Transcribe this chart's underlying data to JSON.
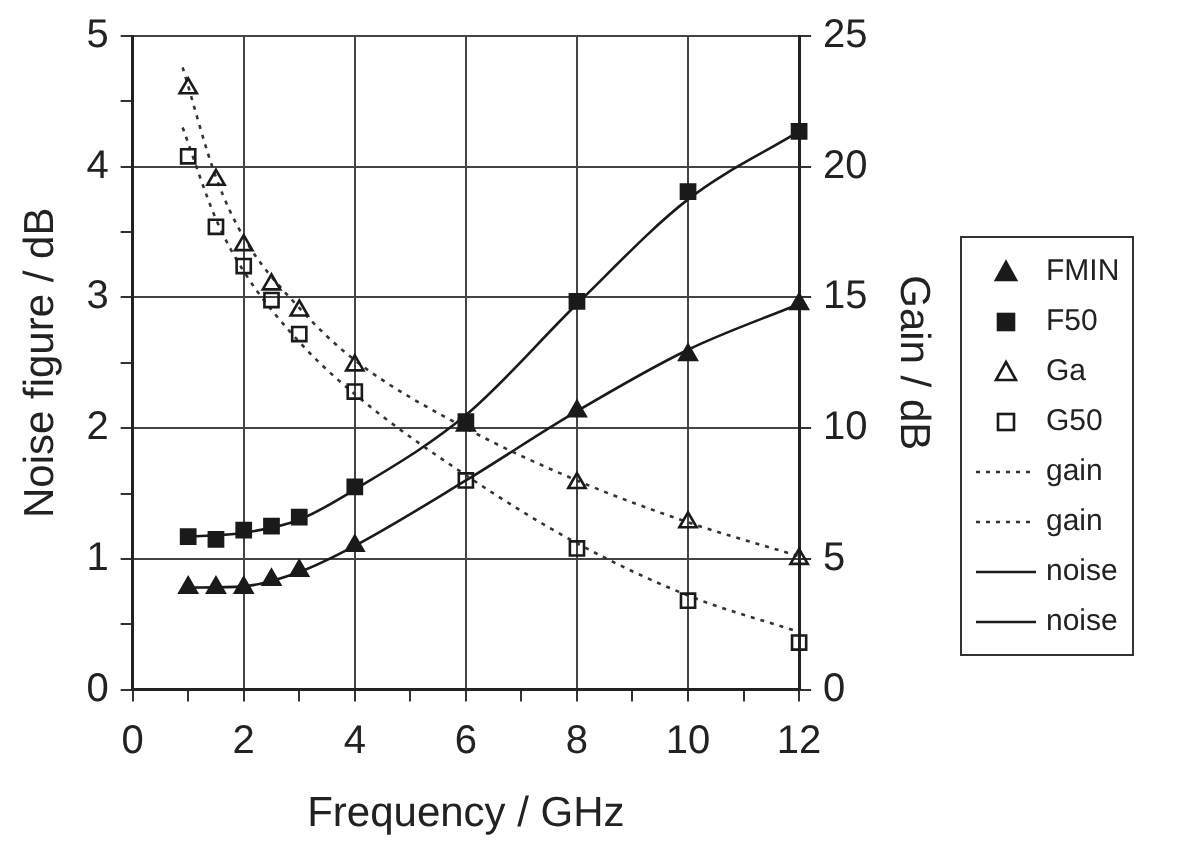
{
  "chart_data": {
    "type": "scatter",
    "xlabel": "Frequency / GHz",
    "ylabel": "Noise figure / dB",
    "y2label": "Gain / dB",
    "x": [
      1,
      1.5,
      2,
      2.5,
      3,
      4,
      6,
      8,
      10,
      12
    ],
    "xlim": [
      0,
      12
    ],
    "xticks": [
      0,
      {
        "value": 1,
        "label": null
      },
      2,
      {
        "value": 3,
        "label": null
      },
      4,
      {
        "value": 5,
        "label": null
      },
      6,
      {
        "value": 7,
        "label": null
      },
      8,
      {
        "value": 9,
        "label": null
      },
      10,
      {
        "value": 11,
        "label": null
      },
      12
    ],
    "ylim": [
      0,
      5
    ],
    "yticks": [
      0,
      {
        "value": 0.5,
        "label": null
      },
      1,
      {
        "value": 1.5,
        "label": null
      },
      2,
      {
        "value": 2.5,
        "label": null
      },
      3,
      {
        "value": 3.5,
        "label": null
      },
      4,
      {
        "value": 4.5,
        "label": null
      },
      5
    ],
    "y2lim": [
      0,
      25
    ],
    "y2ticks": [
      0,
      5,
      10,
      15,
      20,
      25
    ],
    "grid": true,
    "legend": "right",
    "series": [
      {
        "name": "FMIN",
        "color": "#1a1a1a",
        "marker": "triangle",
        "values": [
          0.78,
          0.78,
          0.78,
          0.84,
          0.91,
          1.1,
          null,
          2.13,
          2.56,
          2.95
        ]
      },
      {
        "name": "F50",
        "color": "#1a1a1a",
        "marker": "square",
        "values": [
          1.17,
          1.15,
          1.22,
          1.25,
          1.32,
          1.55,
          2.05,
          2.97,
          3.81,
          4.27
        ]
      },
      {
        "name": "Ga",
        "color": "#1a1a1a",
        "marker": "triangle",
        "axis": "y2",
        "values": [
          23.0,
          19.5,
          17.0,
          15.5,
          14.5,
          12.4,
          10.1,
          7.9,
          6.4,
          5.0
        ]
      },
      {
        "name": "G50",
        "color": "#1a1a1a",
        "marker": "square",
        "axis": "y2",
        "values": [
          20.4,
          17.7,
          16.2,
          14.9,
          13.6,
          11.4,
          8.0,
          5.4,
          3.4,
          1.8
        ]
      },
      {
        "name": "gain",
        "type": "line",
        "color": "#333333",
        "marker": "none",
        "line_style": "dotted",
        "axis": "y2",
        "x": [
          0.9,
          1.5,
          2,
          3,
          4,
          6,
          8,
          10,
          12
        ],
        "values": [
          23.8,
          19.6,
          17.3,
          14.6,
          12.6,
          10.0,
          8.0,
          6.4,
          5.1
        ]
      },
      {
        "name": "gain",
        "type": "line",
        "color": "#333333",
        "marker": "none",
        "line_style": "dotted",
        "axis": "y2",
        "x": [
          0.9,
          1.5,
          2,
          3,
          4,
          6,
          8,
          10,
          12
        ],
        "values": [
          21.5,
          18.0,
          16.0,
          13.3,
          11.3,
          8.2,
          5.6,
          3.6,
          2.2
        ]
      },
      {
        "name": "noise",
        "type": "line",
        "color": "#1a1a1a",
        "marker": "none",
        "line_style": "solid",
        "x": [
          1,
          2,
          3,
          4,
          6,
          8,
          10,
          12
        ],
        "values": [
          1.17,
          1.2,
          1.3,
          1.53,
          2.1,
          2.95,
          3.75,
          4.27
        ]
      },
      {
        "name": "noise",
        "type": "line",
        "color": "#1a1a1a",
        "marker": "none",
        "line_style": "solid",
        "x": [
          1,
          2,
          3,
          4,
          6,
          8,
          10,
          12
        ],
        "values": [
          0.78,
          0.79,
          0.9,
          1.1,
          1.6,
          2.13,
          2.6,
          2.95
        ]
      }
    ]
  }
}
